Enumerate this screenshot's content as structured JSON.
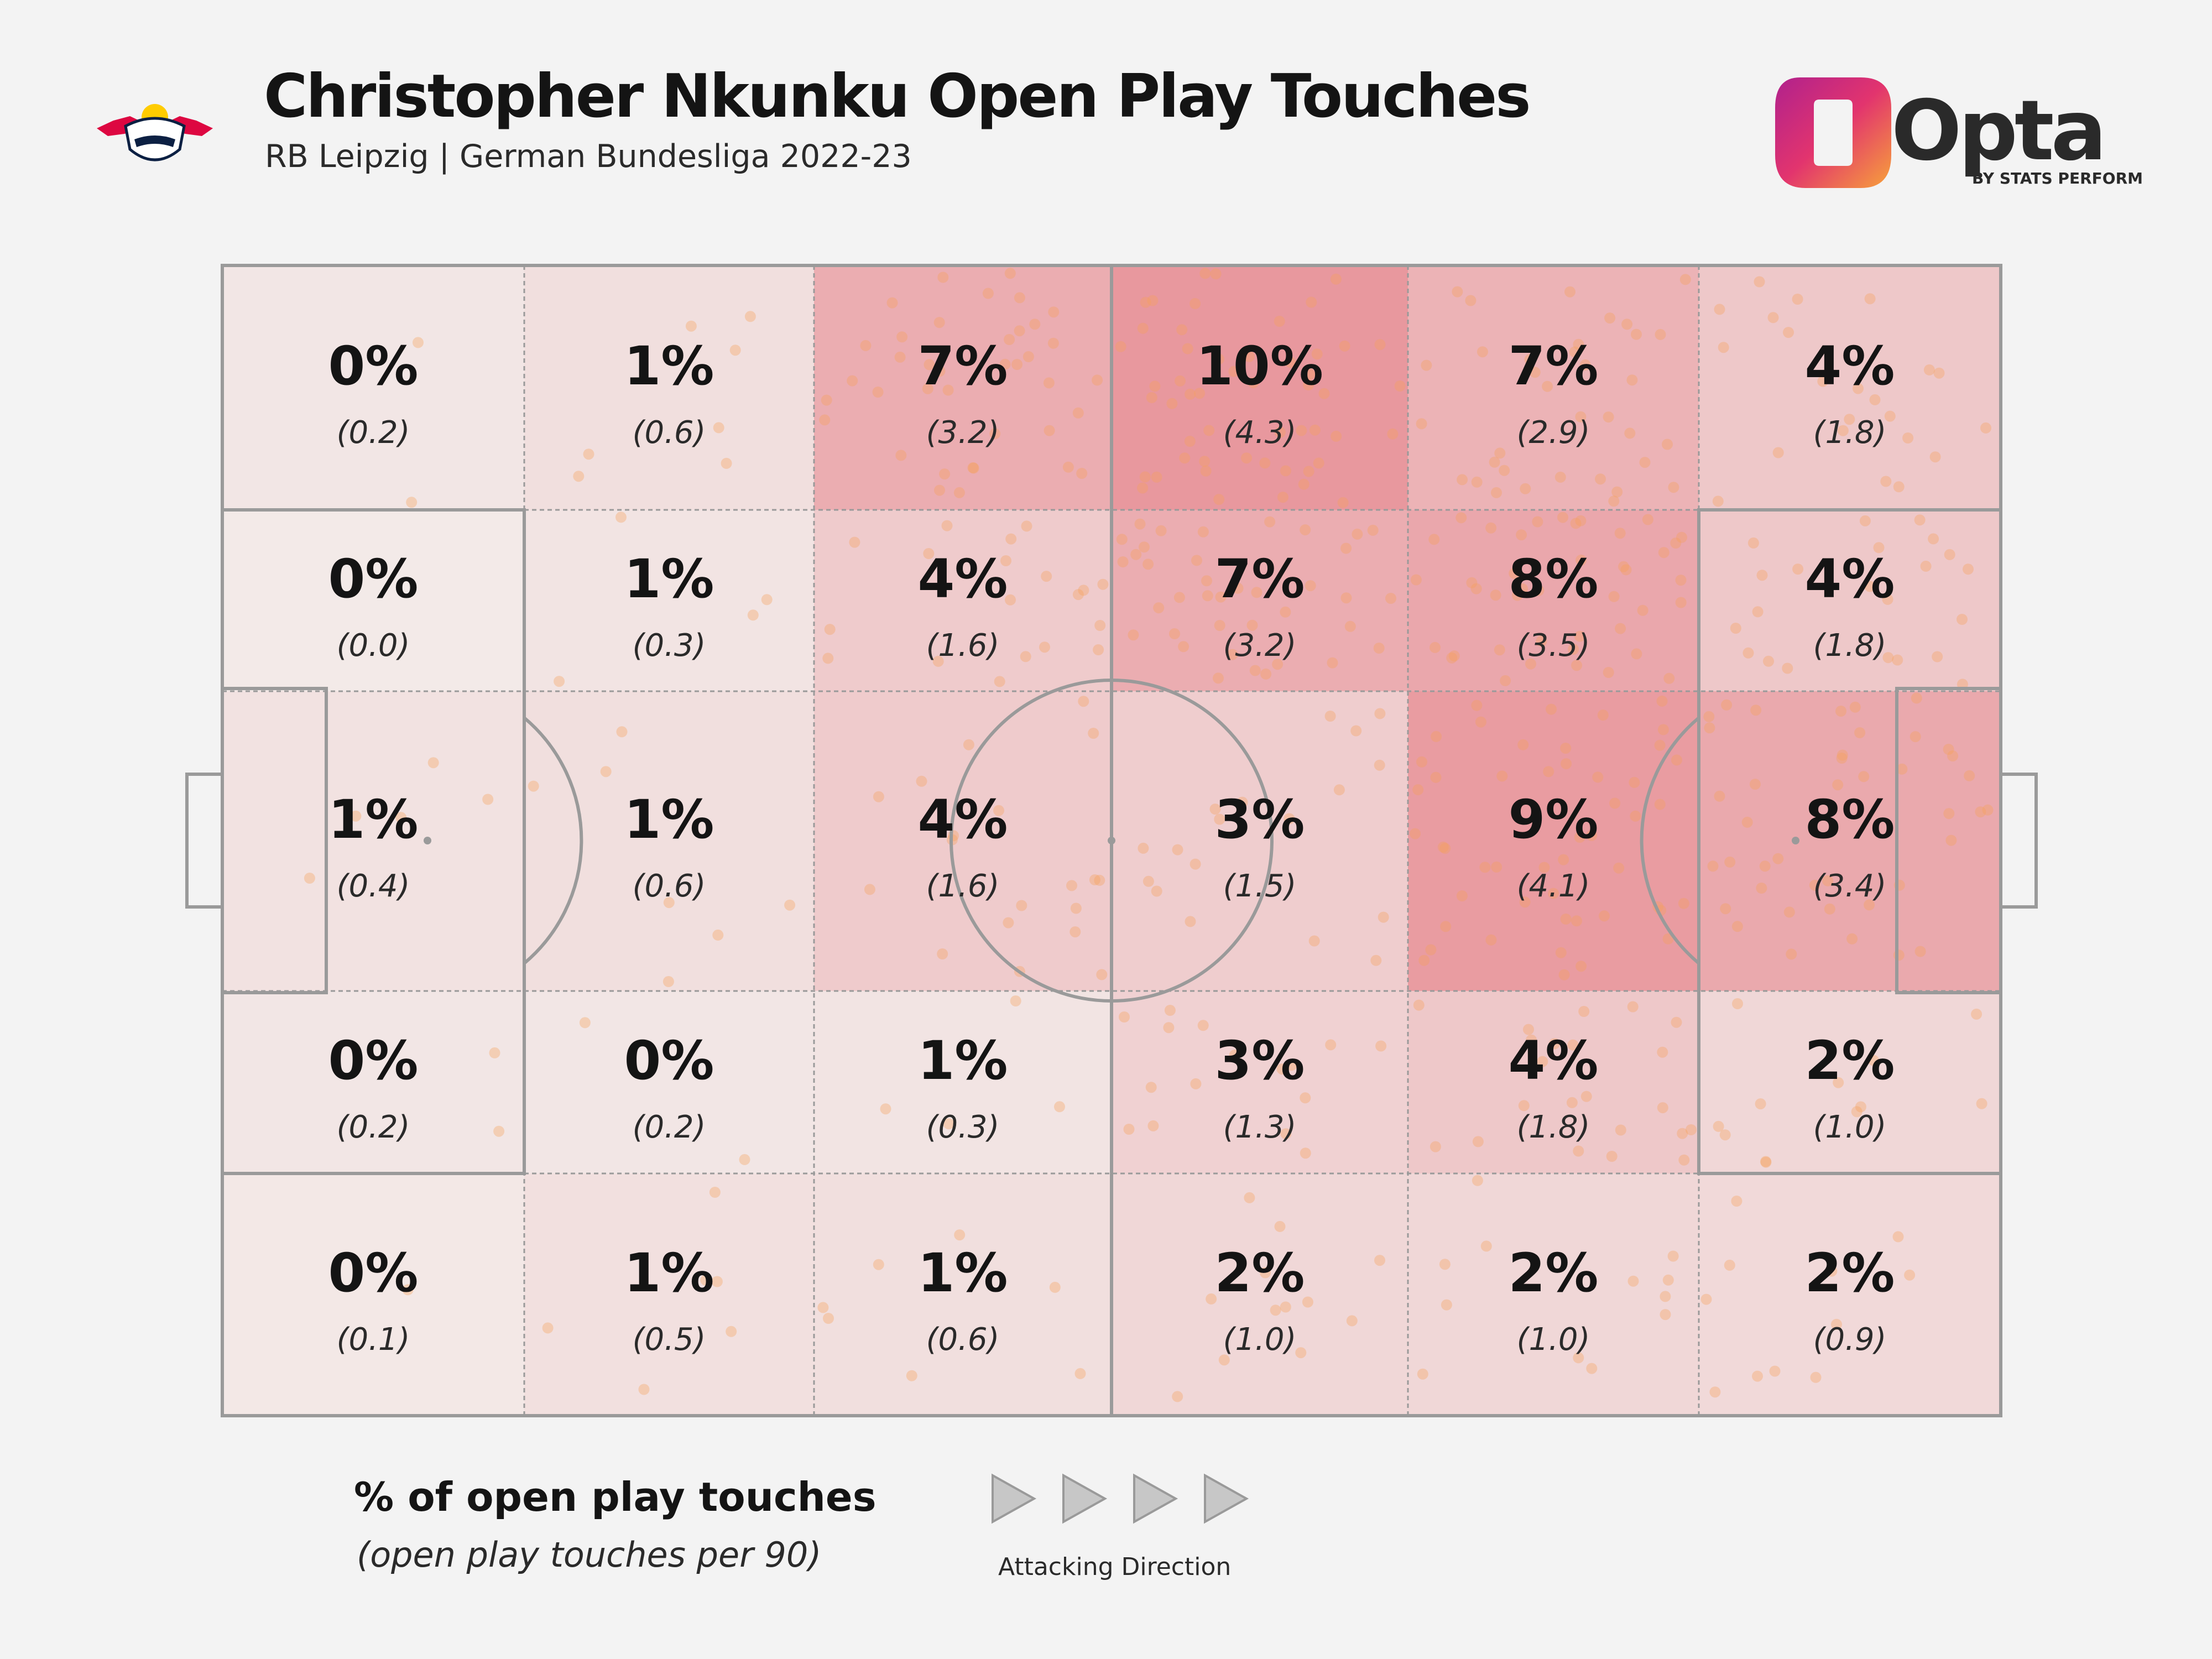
{
  "header": {
    "title": "Christopher Nkunku Open Play Touches",
    "subtitle": "RB Leipzig | German Bundesliga 2022-23",
    "club_logo_text": "RB LEIPZIG",
    "brand_name": "Opta",
    "brand_byline": "BY STATS PERFORM"
  },
  "legend": {
    "title": "% of open play touches",
    "subtitle": "(open play touches per 90)"
  },
  "direction": {
    "label": "Attacking Direction"
  },
  "colors": {
    "background": "#f3f3f3",
    "pitch_lines": "#9a9a9a",
    "heat_base": "#f0e8e6",
    "heat_max": "#e88a8e",
    "touch_dot": "#f6a05a",
    "opta_gradient": [
      "#d63384",
      "#f39a3a"
    ]
  },
  "chart_data": {
    "type": "heatmap",
    "title": "Christopher Nkunku Open Play Touches",
    "subtitle": "RB Leipzig | German Bundesliga 2022-23",
    "columns": 6,
    "rows": 5,
    "direction": "left-to-right",
    "cells": [
      [
        {
          "pct": "0%",
          "p90": "(0.2)",
          "v": 0.2
        },
        {
          "pct": "1%",
          "p90": "(0.6)",
          "v": 0.6
        },
        {
          "pct": "7%",
          "p90": "(3.2)",
          "v": 3.2
        },
        {
          "pct": "10%",
          "p90": "(4.3)",
          "v": 4.3
        },
        {
          "pct": "7%",
          "p90": "(2.9)",
          "v": 2.9
        },
        {
          "pct": "4%",
          "p90": "(1.8)",
          "v": 1.8
        }
      ],
      [
        {
          "pct": "0%",
          "p90": "(0.0)",
          "v": 0.0
        },
        {
          "pct": "1%",
          "p90": "(0.3)",
          "v": 0.3
        },
        {
          "pct": "4%",
          "p90": "(1.6)",
          "v": 1.6
        },
        {
          "pct": "7%",
          "p90": "(3.2)",
          "v": 3.2
        },
        {
          "pct": "8%",
          "p90": "(3.5)",
          "v": 3.5
        },
        {
          "pct": "4%",
          "p90": "(1.8)",
          "v": 1.8
        }
      ],
      [
        {
          "pct": "1%",
          "p90": "(0.4)",
          "v": 0.4
        },
        {
          "pct": "1%",
          "p90": "(0.6)",
          "v": 0.6
        },
        {
          "pct": "4%",
          "p90": "(1.6)",
          "v": 1.6
        },
        {
          "pct": "3%",
          "p90": "(1.5)",
          "v": 1.5
        },
        {
          "pct": "9%",
          "p90": "(4.1)",
          "v": 4.1
        },
        {
          "pct": "8%",
          "p90": "(3.4)",
          "v": 3.4
        }
      ],
      [
        {
          "pct": "0%",
          "p90": "(0.2)",
          "v": 0.2
        },
        {
          "pct": "0%",
          "p90": "(0.2)",
          "v": 0.2
        },
        {
          "pct": "1%",
          "p90": "(0.3)",
          "v": 0.3
        },
        {
          "pct": "3%",
          "p90": "(1.3)",
          "v": 1.3
        },
        {
          "pct": "4%",
          "p90": "(1.8)",
          "v": 1.8
        },
        {
          "pct": "2%",
          "p90": "(1.0)",
          "v": 1.0
        }
      ],
      [
        {
          "pct": "0%",
          "p90": "(0.1)",
          "v": 0.1
        },
        {
          "pct": "1%",
          "p90": "(0.5)",
          "v": 0.5
        },
        {
          "pct": "1%",
          "p90": "(0.6)",
          "v": 0.6
        },
        {
          "pct": "2%",
          "p90": "(1.0)",
          "v": 1.0
        },
        {
          "pct": "2%",
          "p90": "(1.0)",
          "v": 1.0
        },
        {
          "pct": "2%",
          "p90": "(0.9)",
          "v": 0.9
        }
      ]
    ]
  }
}
